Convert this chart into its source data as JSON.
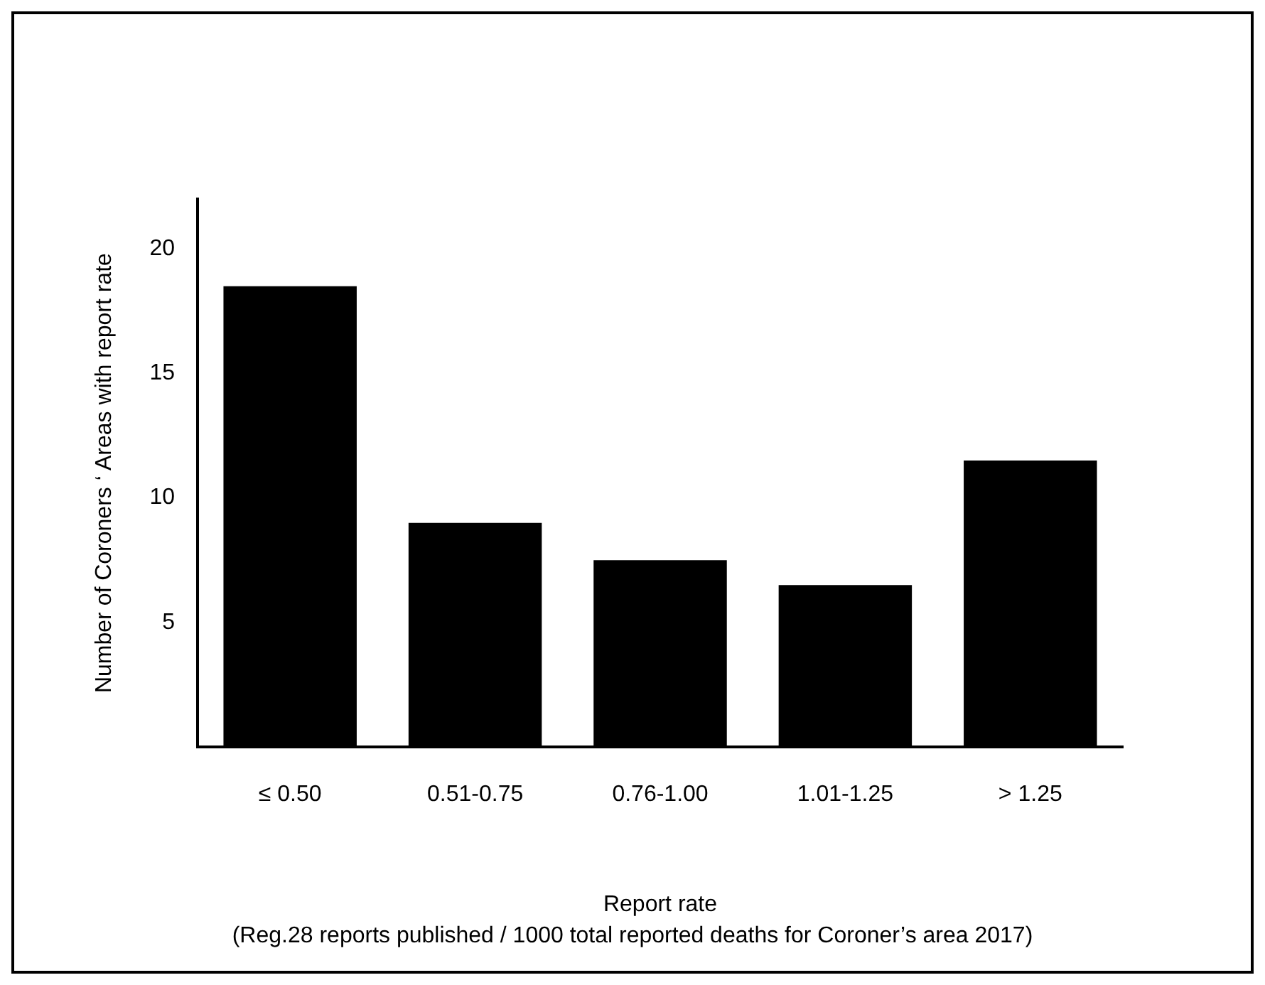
{
  "chart_data": {
    "type": "bar",
    "xlabel": "Report rate",
    "ylabel": "Number of Coroners ‘ Areas with report rate",
    "annotations": [
      "(Reg.28 reports published  / 1000 total reported deaths for Coroner’s area 2017)"
    ],
    "categories": [
      "≤ 0.50",
      "0.51-0.75",
      "0.76-1.00",
      "1.01-1.25",
      "> 1.25"
    ],
    "values": [
      18.5,
      9,
      7.5,
      6.5,
      11.5
    ],
    "color": "#000000",
    "ylim": [
      0,
      22
    ],
    "yticks": [
      5,
      10,
      15,
      20
    ],
    "grid": false,
    "legend": false
  }
}
